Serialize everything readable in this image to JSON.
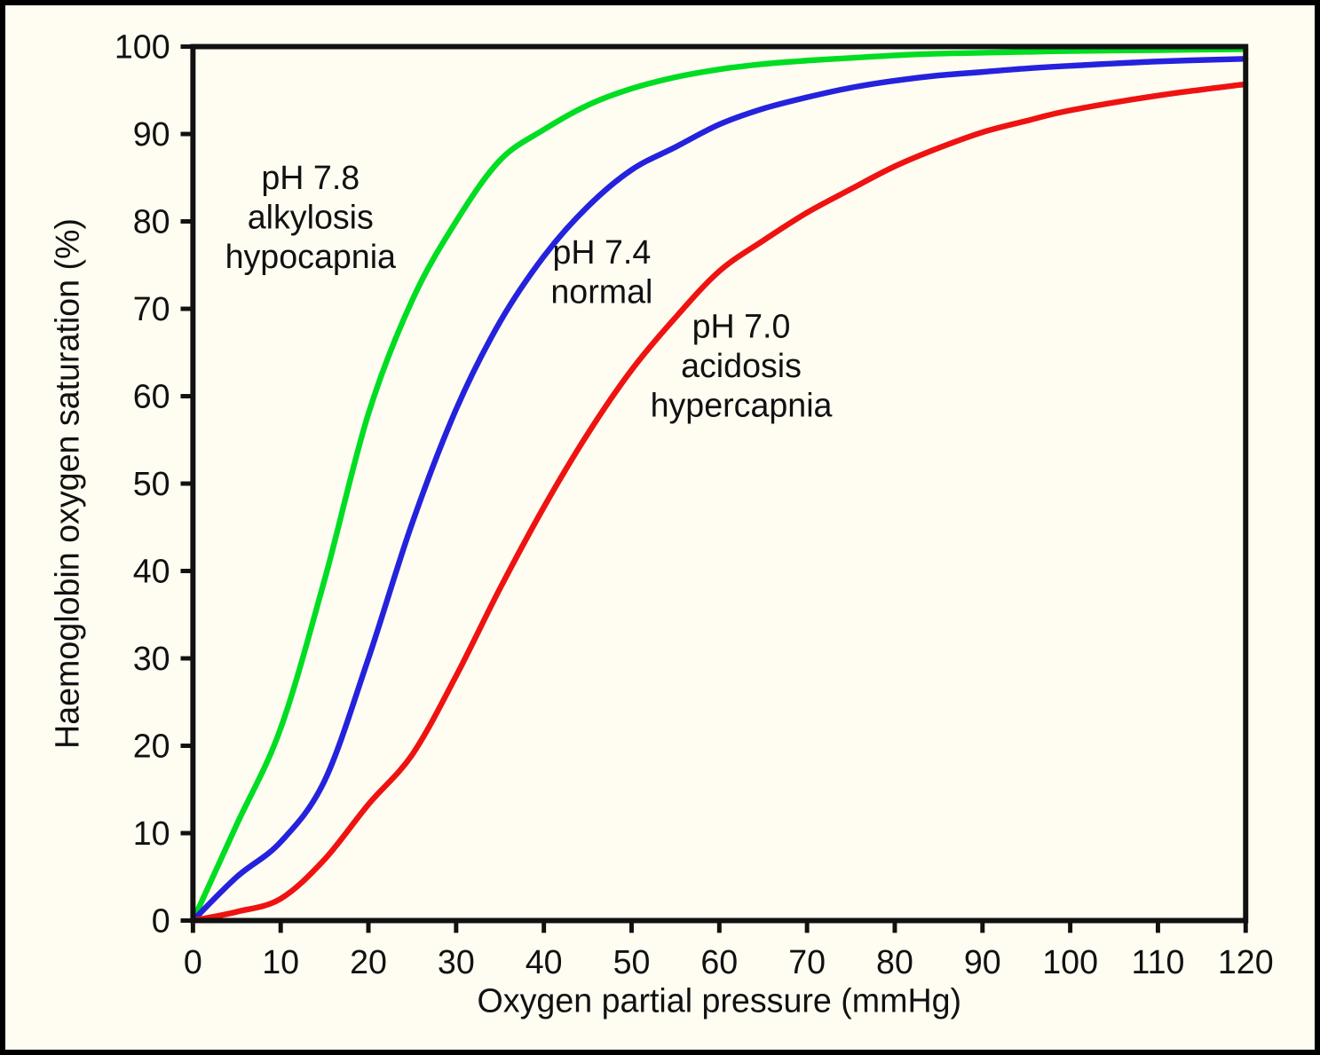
{
  "colors": {
    "background": "#fffdf2",
    "frame_border": "#000000",
    "axis": "#111111",
    "text": "#111111"
  },
  "chart_data": {
    "type": "line",
    "title": "",
    "xlabel": "Oxygen partial pressure (mmHg)",
    "ylabel": "Haemoglobin oxygen saturation (%)",
    "xlim": [
      0,
      120
    ],
    "ylim": [
      0,
      100
    ],
    "x_ticks": [
      0,
      10,
      20,
      30,
      40,
      50,
      60,
      70,
      80,
      90,
      100,
      110,
      120
    ],
    "y_ticks": [
      0,
      10,
      20,
      30,
      40,
      50,
      60,
      70,
      80,
      90,
      100
    ],
    "grid": false,
    "legend_position": "none",
    "x": [
      0,
      5,
      10,
      15,
      20,
      25,
      30,
      35,
      40,
      45,
      50,
      55,
      60,
      65,
      70,
      75,
      80,
      85,
      90,
      95,
      100,
      110,
      120
    ],
    "series": [
      {
        "name": "pH 7.8 alkylosis hypocapnia",
        "p50_mmHg": 17.8,
        "color": "#00dd22",
        "values": [
          0,
          11,
          22,
          39,
          58,
          71,
          80,
          87,
          90.5,
          93.3,
          95.2,
          96.5,
          97.4,
          98.0,
          98.4,
          98.7,
          99.0,
          99.2,
          99.3,
          99.4,
          99.5,
          99.6,
          99.7
        ]
      },
      {
        "name": "pH 7.4 normal",
        "p50_mmHg": 26.8,
        "color": "#2522dd",
        "values": [
          0,
          5,
          9,
          16,
          30,
          45.5,
          58.5,
          68.5,
          76,
          81.7,
          85.9,
          88.5,
          91.1,
          92.9,
          94.2,
          95.3,
          96.1,
          96.7,
          97.1,
          97.5,
          97.8,
          98.3,
          98.6
        ]
      },
      {
        "name": "pH 7.0 acidosis hypercapnia",
        "p50_mmHg": 41.6,
        "color": "#ee1311",
        "values": [
          0,
          1,
          2.5,
          7,
          13.3,
          19,
          28,
          38,
          47.3,
          55.7,
          63,
          69,
          74.3,
          77.8,
          81,
          83.7,
          86.3,
          88.4,
          90.2,
          91.5,
          92.7,
          94.4,
          95.7
        ]
      }
    ],
    "annotations": [
      {
        "lines": [
          "pH 7.8",
          "alkylosis",
          "hypocapnia"
        ],
        "x": 13.4,
        "y": 85.0
      },
      {
        "lines": [
          "pH 7.4",
          "normal"
        ],
        "x": 46.6,
        "y": 76.5
      },
      {
        "lines": [
          "pH 7.0",
          "acidosis",
          "hypercapnia"
        ],
        "x": 62.5,
        "y": 68.0
      }
    ]
  }
}
